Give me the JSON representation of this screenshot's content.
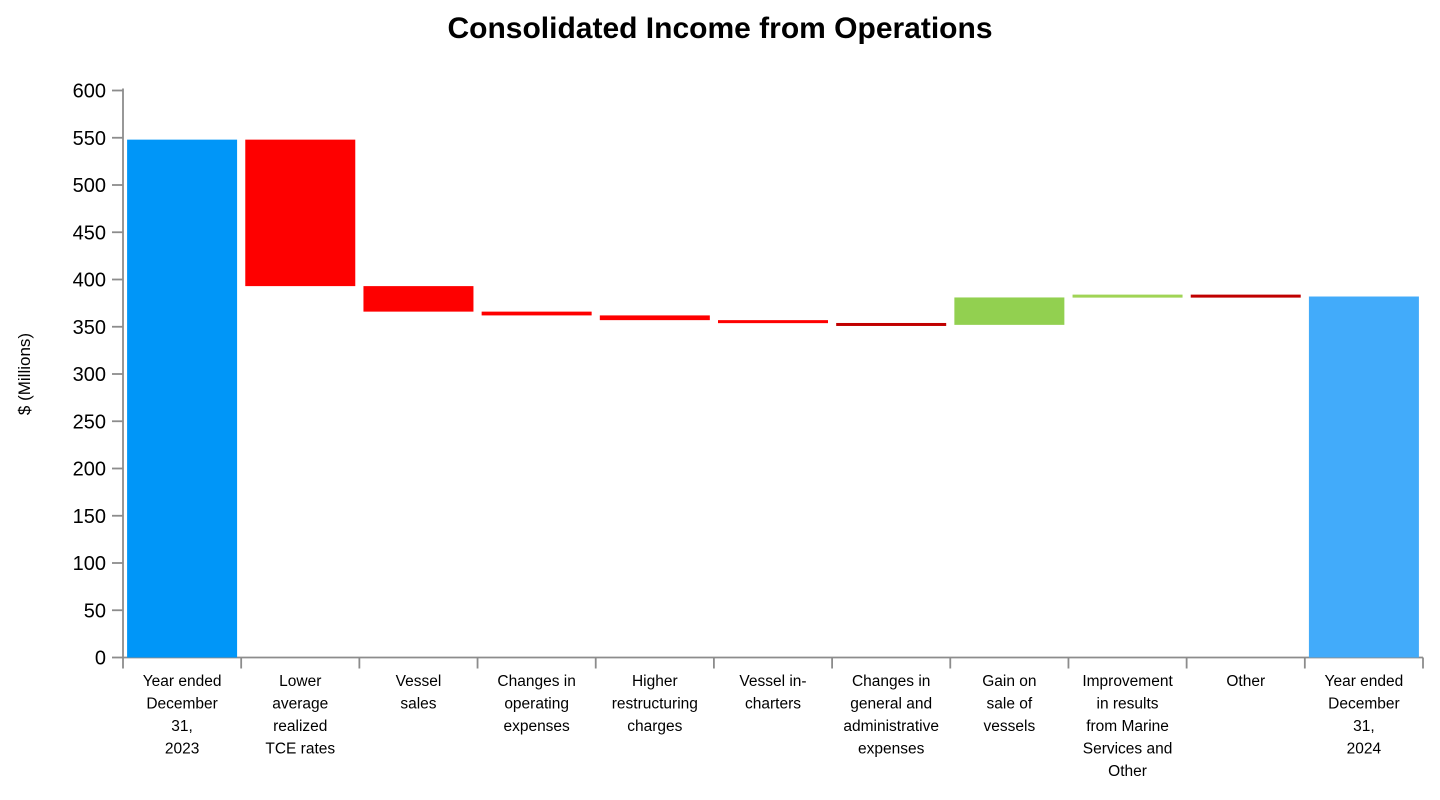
{
  "chart_data": {
    "type": "bar",
    "subtype": "waterfall",
    "title": "Consolidated Income from Operations",
    "ylabel": "$ (Millions)",
    "xlabel": "",
    "y_axis": {
      "min": 0,
      "max": 600,
      "step": 50
    },
    "axis_color": "#8C8C8C",
    "grid": false,
    "legend": "none",
    "bars": [
      {
        "label": "Year ended December 31, 2023",
        "label_lines": [
          "Year ended",
          "December",
          "31,",
          "2023"
        ],
        "kind": "total",
        "value": 548,
        "color": "#0096F8"
      },
      {
        "label": "Lower average realized TCE rates",
        "label_lines": [
          "Lower",
          "average",
          "realized",
          "TCE rates"
        ],
        "kind": "delta",
        "value": -155,
        "color": "#FE0000"
      },
      {
        "label": "Vessel sales",
        "label_lines": [
          "Vessel",
          "sales"
        ],
        "kind": "delta",
        "value": -27,
        "color": "#FE0000"
      },
      {
        "label": "Changes in operating expenses",
        "label_lines": [
          "Changes in",
          "operating",
          "expenses"
        ],
        "kind": "delta",
        "value": -4,
        "color": "#FE0000"
      },
      {
        "label": "Higher restructuring charges",
        "label_lines": [
          "Higher",
          "restructuring",
          "charges"
        ],
        "kind": "delta",
        "value": -5,
        "color": "#FE0000"
      },
      {
        "label": "Vessel in-charters",
        "label_lines": [
          "Vessel in-",
          "charters"
        ],
        "kind": "delta",
        "value": -3,
        "color": "#FE0000"
      },
      {
        "label": "Changes in general and administrative expenses",
        "label_lines": [
          "Changes in",
          "general and",
          "administrative",
          "expenses"
        ],
        "kind": "delta",
        "value": -2,
        "color": "#C00000"
      },
      {
        "label": "Gain on sale of vessels",
        "label_lines": [
          "Gain on",
          "sale of",
          "vessels"
        ],
        "kind": "delta",
        "value": 29,
        "color": "#92D050"
      },
      {
        "label": "Improvement in results from Marine Services and Other",
        "label_lines": [
          "Improvement",
          "in results",
          "from Marine",
          "Services and",
          "Other"
        ],
        "kind": "delta",
        "value": 3,
        "color": "#A0D455"
      },
      {
        "label": "Other",
        "label_lines": [
          "Other"
        ],
        "kind": "delta",
        "value": -2,
        "color": "#C00000"
      },
      {
        "label": "Year ended December 31, 2024",
        "label_lines": [
          "Year ended",
          "December",
          "31,",
          "2024"
        ],
        "kind": "total",
        "value": 382,
        "color": "#42ABFA"
      }
    ]
  }
}
